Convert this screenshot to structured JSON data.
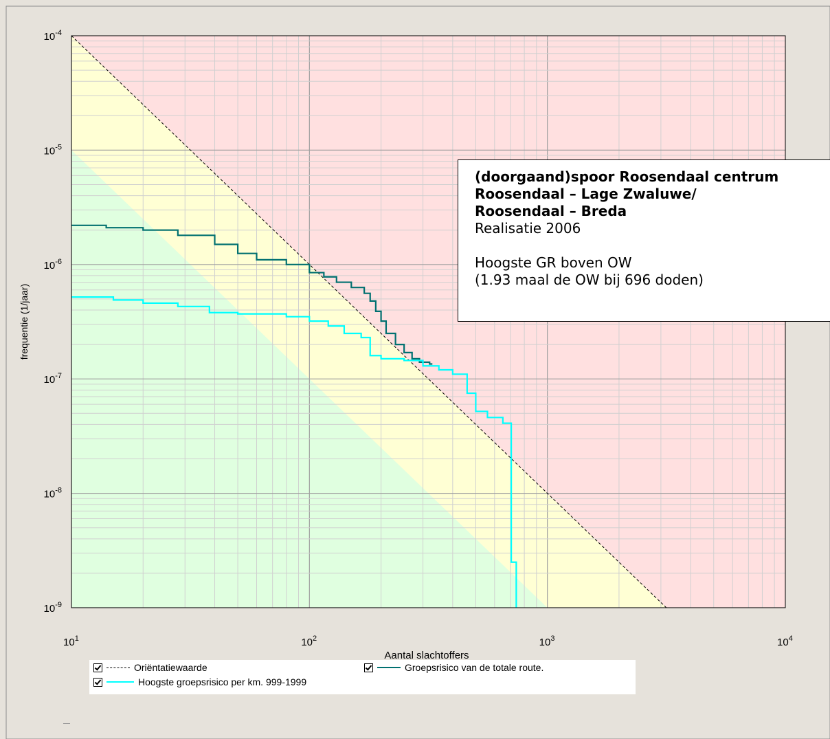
{
  "chart_data": {
    "type": "line",
    "xscale": "log",
    "yscale": "log",
    "xlim": [
      10,
      10000
    ],
    "ylim": [
      1e-09,
      0.0001
    ],
    "xlabel": "Aantal slachtoffers",
    "ylabel": "frequentie (1/jaar)",
    "x_ticks": [
      {
        "base": "10",
        "exp": "1"
      },
      {
        "base": "10",
        "exp": "2"
      },
      {
        "base": "10",
        "exp": "3"
      },
      {
        "base": "10",
        "exp": "4"
      }
    ],
    "y_ticks": [
      {
        "base": "10",
        "exp": "-4"
      },
      {
        "base": "10",
        "exp": "-5"
      },
      {
        "base": "10",
        "exp": "-6"
      },
      {
        "base": "10",
        "exp": "-7"
      },
      {
        "base": "10",
        "exp": "-8"
      },
      {
        "base": "10",
        "exp": "-9"
      }
    ],
    "grid": true,
    "zones": {
      "red": "#ffe0e0",
      "yellow": "#ffffd4",
      "green": "#e0ffe0"
    },
    "series": [
      {
        "name": "Oriëntatiewaarde",
        "style": "dashed",
        "color": "#000000",
        "x": [
          10,
          3162
        ],
        "y": [
          0.0001,
          1e-09
        ]
      },
      {
        "name": "Groepsrisico van de totale route.",
        "style": "step",
        "color": "#007070",
        "x": [
          10,
          14,
          20,
          28,
          40,
          50,
          60,
          80,
          100,
          115,
          130,
          150,
          170,
          180,
          190,
          200,
          210,
          230,
          250,
          270,
          290,
          320
        ],
        "y": [
          2.2e-06,
          2.1e-06,
          2e-06,
          1.8e-06,
          1.5e-06,
          1.25e-06,
          1.1e-06,
          1e-06,
          8.5e-07,
          7.8e-07,
          7e-07,
          6.3e-07,
          5.6e-07,
          4.8e-07,
          3.9e-07,
          3.2e-07,
          2.5e-07,
          2e-07,
          1.7e-07,
          1.5e-07,
          1.4e-07,
          1.35e-07
        ]
      },
      {
        "name": "Hoogste groepsrisico per km. 999-1999",
        "style": "step",
        "color": "#00ffff",
        "x": [
          10,
          15,
          20,
          28,
          38,
          50,
          80,
          100,
          120,
          140,
          165,
          180,
          200,
          250,
          300,
          350,
          400,
          460,
          500,
          560,
          650,
          705,
          740
        ],
        "y": [
          5.2e-07,
          4.9e-07,
          4.6e-07,
          4.3e-07,
          3.8e-07,
          3.7e-07,
          3.5e-07,
          3.2e-07,
          2.9e-07,
          2.5e-07,
          2.3e-07,
          1.6e-07,
          1.5e-07,
          1.45e-07,
          1.3e-07,
          1.2e-07,
          1.1e-07,
          7.5e-08,
          5.2e-08,
          4.6e-08,
          4.1e-08,
          2.5e-09,
          1e-09
        ]
      }
    ],
    "legend": {
      "items": [
        {
          "checked": true,
          "label": "Oriëntatiewaarde",
          "style": "dashed",
          "color": "#000000"
        },
        {
          "checked": true,
          "label": "Groepsrisico van de totale route.",
          "style": "solid",
          "color": "#007070"
        },
        {
          "checked": true,
          "label": "Hoogste groepsrisico per km. 999-1999",
          "style": "solid",
          "color": "#00ffff"
        }
      ]
    },
    "annotation": {
      "line1": "(doorgaand)spoor Roosendaal centrum",
      "line2": "Roosendaal – Lage Zwaluwe/",
      "line3": "Roosendaal – Breda",
      "line4": "Realisatie 2006",
      "line5": "Hoogste GR boven OW",
      "line6": "(1.93 maal de OW bij 696 doden)"
    }
  },
  "colors": {
    "window_bg": "#e6e2db",
    "grid": "#aaaaaa",
    "axis": "#000000"
  }
}
